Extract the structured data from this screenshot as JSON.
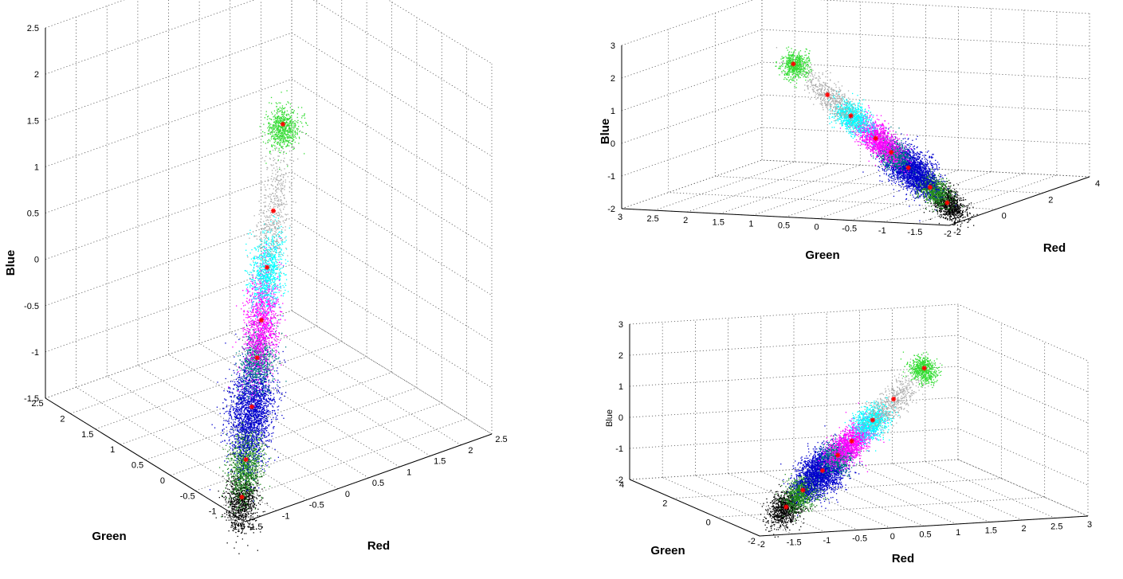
{
  "chart_data": [
    {
      "type": "scatter",
      "view": "3d",
      "xlabel": "Red",
      "ylabel": "Green",
      "zlabel": "Blue",
      "xticks": [
        "-1.5",
        "-1",
        "-0.5",
        "0",
        "0.5",
        "1",
        "1.5",
        "2",
        "2.5"
      ],
      "yticks": [
        "-1.5",
        "-1",
        "-0.5",
        "0",
        "0.5",
        "1",
        "1.5",
        "2",
        "2.5"
      ],
      "zticks": [
        "-1.5",
        "-1",
        "-0.5",
        "0",
        "0.5",
        "1",
        "1.5",
        "2",
        "2.5"
      ],
      "xlim": [
        -1.5,
        2.5
      ],
      "ylim": [
        -1.5,
        2.5
      ],
      "zlim": [
        -1.5,
        2.5
      ],
      "grid": true,
      "series": [
        {
          "color": "#000000",
          "center": [
            -1.4,
            -1.4,
            -1.4
          ],
          "centroid": true
        },
        {
          "color": "#228b22",
          "center": [
            -1.1,
            -1.1,
            -1.1
          ],
          "centroid": true
        },
        {
          "color": "#0000cd",
          "center": [
            -0.75,
            -0.75,
            -0.75
          ],
          "centroid": true
        },
        {
          "color": "#008080",
          "center": [
            -0.45,
            -0.45,
            -0.45
          ],
          "centroid": true
        },
        {
          "color": "#ff00ff",
          "center": [
            -0.15,
            -0.15,
            -0.15
          ],
          "centroid": true
        },
        {
          "color": "#00ffff",
          "center": [
            0.45,
            0.45,
            0.45
          ],
          "centroid": true
        },
        {
          "color": "#aaaaaa",
          "center": [
            1.1,
            1.1,
            1.1
          ],
          "centroid": true
        },
        {
          "color": "#33dd33",
          "center": [
            2.3,
            2.3,
            2.3
          ],
          "centroid": true
        }
      ]
    },
    {
      "type": "scatter",
      "view": "3d",
      "xlabel": "Red",
      "ylabel": "Green",
      "zlabel": "Blue",
      "xticks": [
        "-2",
        "0",
        "2",
        "4"
      ],
      "yticks": [
        "-2",
        "-1.5",
        "-1",
        "-0.5",
        "0",
        "0.5",
        "1",
        "1.5",
        "2",
        "2.5",
        "3"
      ],
      "zticks": [
        "-2",
        "-1",
        "0",
        "1",
        "2",
        "3"
      ],
      "xlim": [
        -2,
        4
      ],
      "ylim": [
        -2,
        3
      ],
      "zlim": [
        -2,
        3
      ],
      "grid": true,
      "series": [
        {
          "color": "#000000",
          "center": [
            -1.9,
            -1.9,
            -1.9
          ],
          "centroid": true
        },
        {
          "color": "#228b22",
          "center": [
            -1.5,
            -1.5,
            -1.5
          ],
          "centroid": true
        },
        {
          "color": "#0000cd",
          "center": [
            -0.9,
            -0.9,
            -0.9
          ],
          "centroid": true
        },
        {
          "color": "#008080",
          "center": [
            -0.5,
            -0.5,
            -0.5
          ],
          "centroid": true
        },
        {
          "color": "#ff00ff",
          "center": [
            -0.1,
            -0.1,
            -0.1
          ],
          "centroid": true
        },
        {
          "color": "#00ffff",
          "center": [
            0.5,
            0.5,
            0.5
          ],
          "centroid": true
        },
        {
          "color": "#aaaaaa",
          "center": [
            1.2,
            1.2,
            1.2
          ],
          "centroid": true
        },
        {
          "color": "#33dd33",
          "center": [
            2.6,
            2.6,
            2.6
          ],
          "centroid": true
        }
      ]
    },
    {
      "type": "scatter",
      "view": "3d",
      "xlabel": "Red",
      "ylabel": "Green",
      "zlabel": "Blue",
      "xticks": [
        "-2",
        "-1.5",
        "-1",
        "-0.5",
        "0",
        "0.5",
        "1",
        "1.5",
        "2",
        "2.5",
        "3"
      ],
      "yticks": [
        "-2",
        "0",
        "2",
        "4"
      ],
      "zticks": [
        "-2",
        "-1",
        "0",
        "1",
        "2",
        "3"
      ],
      "xlim": [
        -2,
        3
      ],
      "ylim": [
        -2,
        4
      ],
      "zlim": [
        -2,
        3
      ],
      "grid": true,
      "series": [
        {
          "color": "#000000",
          "center": [
            -1.9,
            -1.9,
            -1.9
          ],
          "centroid": true
        },
        {
          "color": "#228b22",
          "center": [
            -1.5,
            -1.5,
            -1.5
          ],
          "centroid": true
        },
        {
          "color": "#0000cd",
          "center": [
            -0.9,
            -0.9,
            -0.9
          ],
          "centroid": true
        },
        {
          "color": "#008080",
          "center": [
            -0.5,
            -0.5,
            -0.5
          ],
          "centroid": true
        },
        {
          "color": "#ff00ff",
          "center": [
            -0.1,
            -0.1,
            -0.1
          ],
          "centroid": true
        },
        {
          "color": "#00ffff",
          "center": [
            0.5,
            0.5,
            0.5
          ],
          "centroid": true
        },
        {
          "color": "#aaaaaa",
          "center": [
            1.2,
            1.2,
            1.2
          ],
          "centroid": true
        },
        {
          "color": "#33dd33",
          "center": [
            2.6,
            2.6,
            2.6
          ],
          "centroid": true
        }
      ]
    }
  ]
}
